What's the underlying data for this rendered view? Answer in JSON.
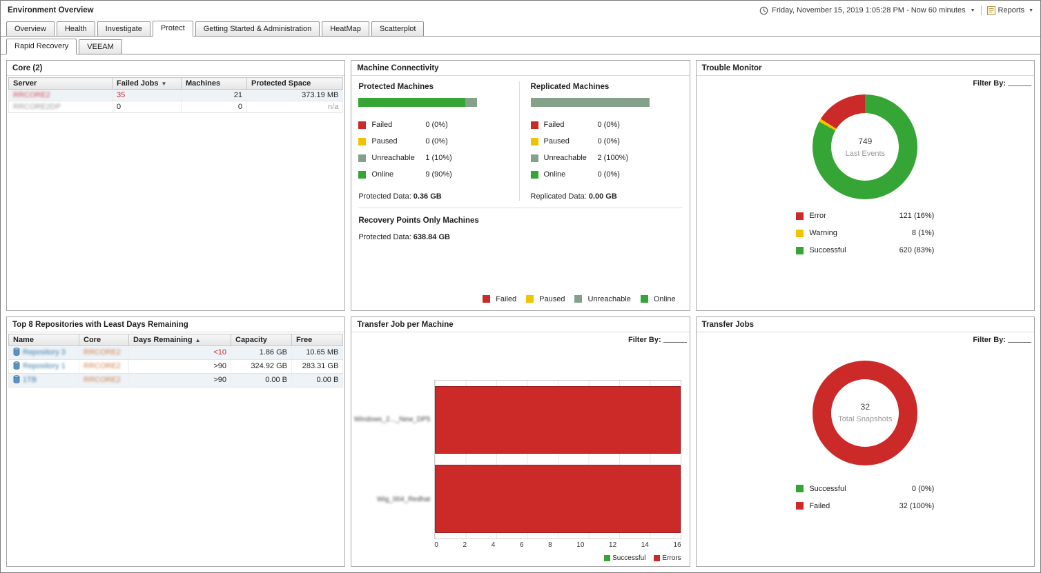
{
  "header": {
    "title": "Environment Overview",
    "time_range": "Friday, November 15, 2019 1:05:28 PM - Now 60 minutes",
    "reports_label": "Reports"
  },
  "icons": {
    "chevron_down": "▼",
    "sort_desc": "▼",
    "sort_asc": "▲"
  },
  "tabs": {
    "main": [
      "Overview",
      "Health",
      "Investigate",
      "Protect",
      "Getting Started & Administration",
      "HeatMap",
      "Scatterplot"
    ],
    "active_main": "Protect",
    "sub": [
      "Rapid Recovery",
      "VEEAM"
    ],
    "active_sub": "Rapid Recovery"
  },
  "core": {
    "title": "Core (2)",
    "columns": {
      "server": "Server",
      "failed_jobs": "Failed Jobs",
      "machines": "Machines",
      "protected_space": "Protected Space"
    },
    "rows": [
      {
        "server": "RRCORE2",
        "failed_jobs": "35",
        "machines": "21",
        "protected_space": "373.19 MB"
      },
      {
        "server": "RRCORE2DP",
        "failed_jobs": "0",
        "machines": "0",
        "protected_space": "n/a"
      }
    ]
  },
  "machine_connectivity": {
    "title": "Machine Connectivity",
    "protected": {
      "heading": "Protected Machines",
      "bar": [
        {
          "color": "#35a535",
          "pct": 90
        },
        {
          "color": "#85a18c",
          "pct": 10
        }
      ],
      "legend": [
        {
          "label": "Failed",
          "value": "0 (0%)"
        },
        {
          "label": "Paused",
          "value": "0 (0%)"
        },
        {
          "label": "Unreachable",
          "value": "1 (10%)"
        },
        {
          "label": "Online",
          "value": "9 (90%)"
        }
      ],
      "data_label": "Protected Data:",
      "data_value": "0.36 GB"
    },
    "replicated": {
      "heading": "Replicated Machines",
      "bar": [
        {
          "color": "#85a18c",
          "pct": 100
        }
      ],
      "legend": [
        {
          "label": "Failed",
          "value": "0 (0%)"
        },
        {
          "label": "Paused",
          "value": "0 (0%)"
        },
        {
          "label": "Unreachable",
          "value": "2 (100%)"
        },
        {
          "label": "Online",
          "value": "0 (0%)"
        }
      ],
      "data_label": "Replicated Data:",
      "data_value": "0.00 GB"
    },
    "recovery_points": {
      "heading": "Recovery Points Only Machines",
      "data_label": "Protected Data:",
      "data_value": "638.84 GB"
    },
    "footer_legend": [
      "Failed",
      "Paused",
      "Unreachable",
      "Online"
    ]
  },
  "trouble_monitor": {
    "title": "Trouble Monitor",
    "filter_label": "Filter By:",
    "donut": {
      "center_value": "749",
      "center_label": "Last Events",
      "segments": [
        {
          "label": "Successful",
          "pct": 83,
          "color": "#35a535"
        },
        {
          "label": "Warning",
          "pct": 1,
          "color": "#f0c400"
        },
        {
          "label": "Error",
          "pct": 16,
          "color": "#cc2a28"
        }
      ]
    },
    "legend": [
      {
        "label": "Error",
        "value": "121 (16%)"
      },
      {
        "label": "Warning",
        "value": "8 (1%)"
      },
      {
        "label": "Successful",
        "value": "620 (83%)"
      }
    ]
  },
  "repositories": {
    "title": "Top 8 Repositories with Least Days Remaining",
    "columns": {
      "name": "Name",
      "core": "Core",
      "days": "Days Remaining",
      "capacity": "Capacity",
      "free": "Free"
    },
    "rows": [
      {
        "name": "Repository 3",
        "core": "RRCORE2",
        "days": "<10",
        "capacity": "1.86 GB",
        "free": "10.65 MB"
      },
      {
        "name": "Repository 1",
        "core": "RRCORE2",
        "days": ">90",
        "capacity": "324.92 GB",
        "free": "283.31 GB"
      },
      {
        "name": "1TB",
        "core": "RRCORE2",
        "days": ">90",
        "capacity": "0.00 B",
        "free": "0.00 B"
      }
    ]
  },
  "transfer_job_per_machine": {
    "title": "Transfer Job per Machine",
    "filter_label": "Filter By:",
    "chart_data": {
      "type": "bar",
      "orientation": "horizontal",
      "categories": [
        "Windows_2..._New_DP5",
        "Wig_004_Redhat"
      ],
      "series": [
        {
          "name": "Successful",
          "values": [
            0,
            0
          ],
          "color": "#35a535"
        },
        {
          "name": "Errors",
          "values": [
            16,
            16
          ],
          "color": "#cc2a28"
        }
      ],
      "xlim": [
        0,
        16
      ]
    },
    "bars": [
      {
        "label": "Windows_2..._New_DP5",
        "value": 16,
        "pct": 100
      },
      {
        "label": "Wig_004_Redhat",
        "value": 16,
        "pct": 100
      }
    ],
    "ticks": [
      "0",
      "2",
      "4",
      "6",
      "8",
      "10",
      "12",
      "14",
      "16"
    ],
    "legend": [
      {
        "label": "Successful"
      },
      {
        "label": "Errors"
      }
    ]
  },
  "transfer_jobs": {
    "title": "Transfer Jobs",
    "filter_label": "Filter By:",
    "donut": {
      "center_value": "32",
      "center_label": "Total Snapshots",
      "segments": [
        {
          "label": "Failed",
          "pct": 100,
          "color": "#cc2a28"
        }
      ]
    },
    "legend": [
      {
        "label": "Successful",
        "value": "0 (0%)"
      },
      {
        "label": "Failed",
        "value": "32 (100%)"
      }
    ]
  },
  "colors": {
    "failed": "#cc2a28",
    "paused": "#f0c400",
    "unreachable": "#85a18c",
    "online": "#35a535",
    "error": "#cc2a28",
    "warning": "#f0c400",
    "successful": "#35a535"
  }
}
